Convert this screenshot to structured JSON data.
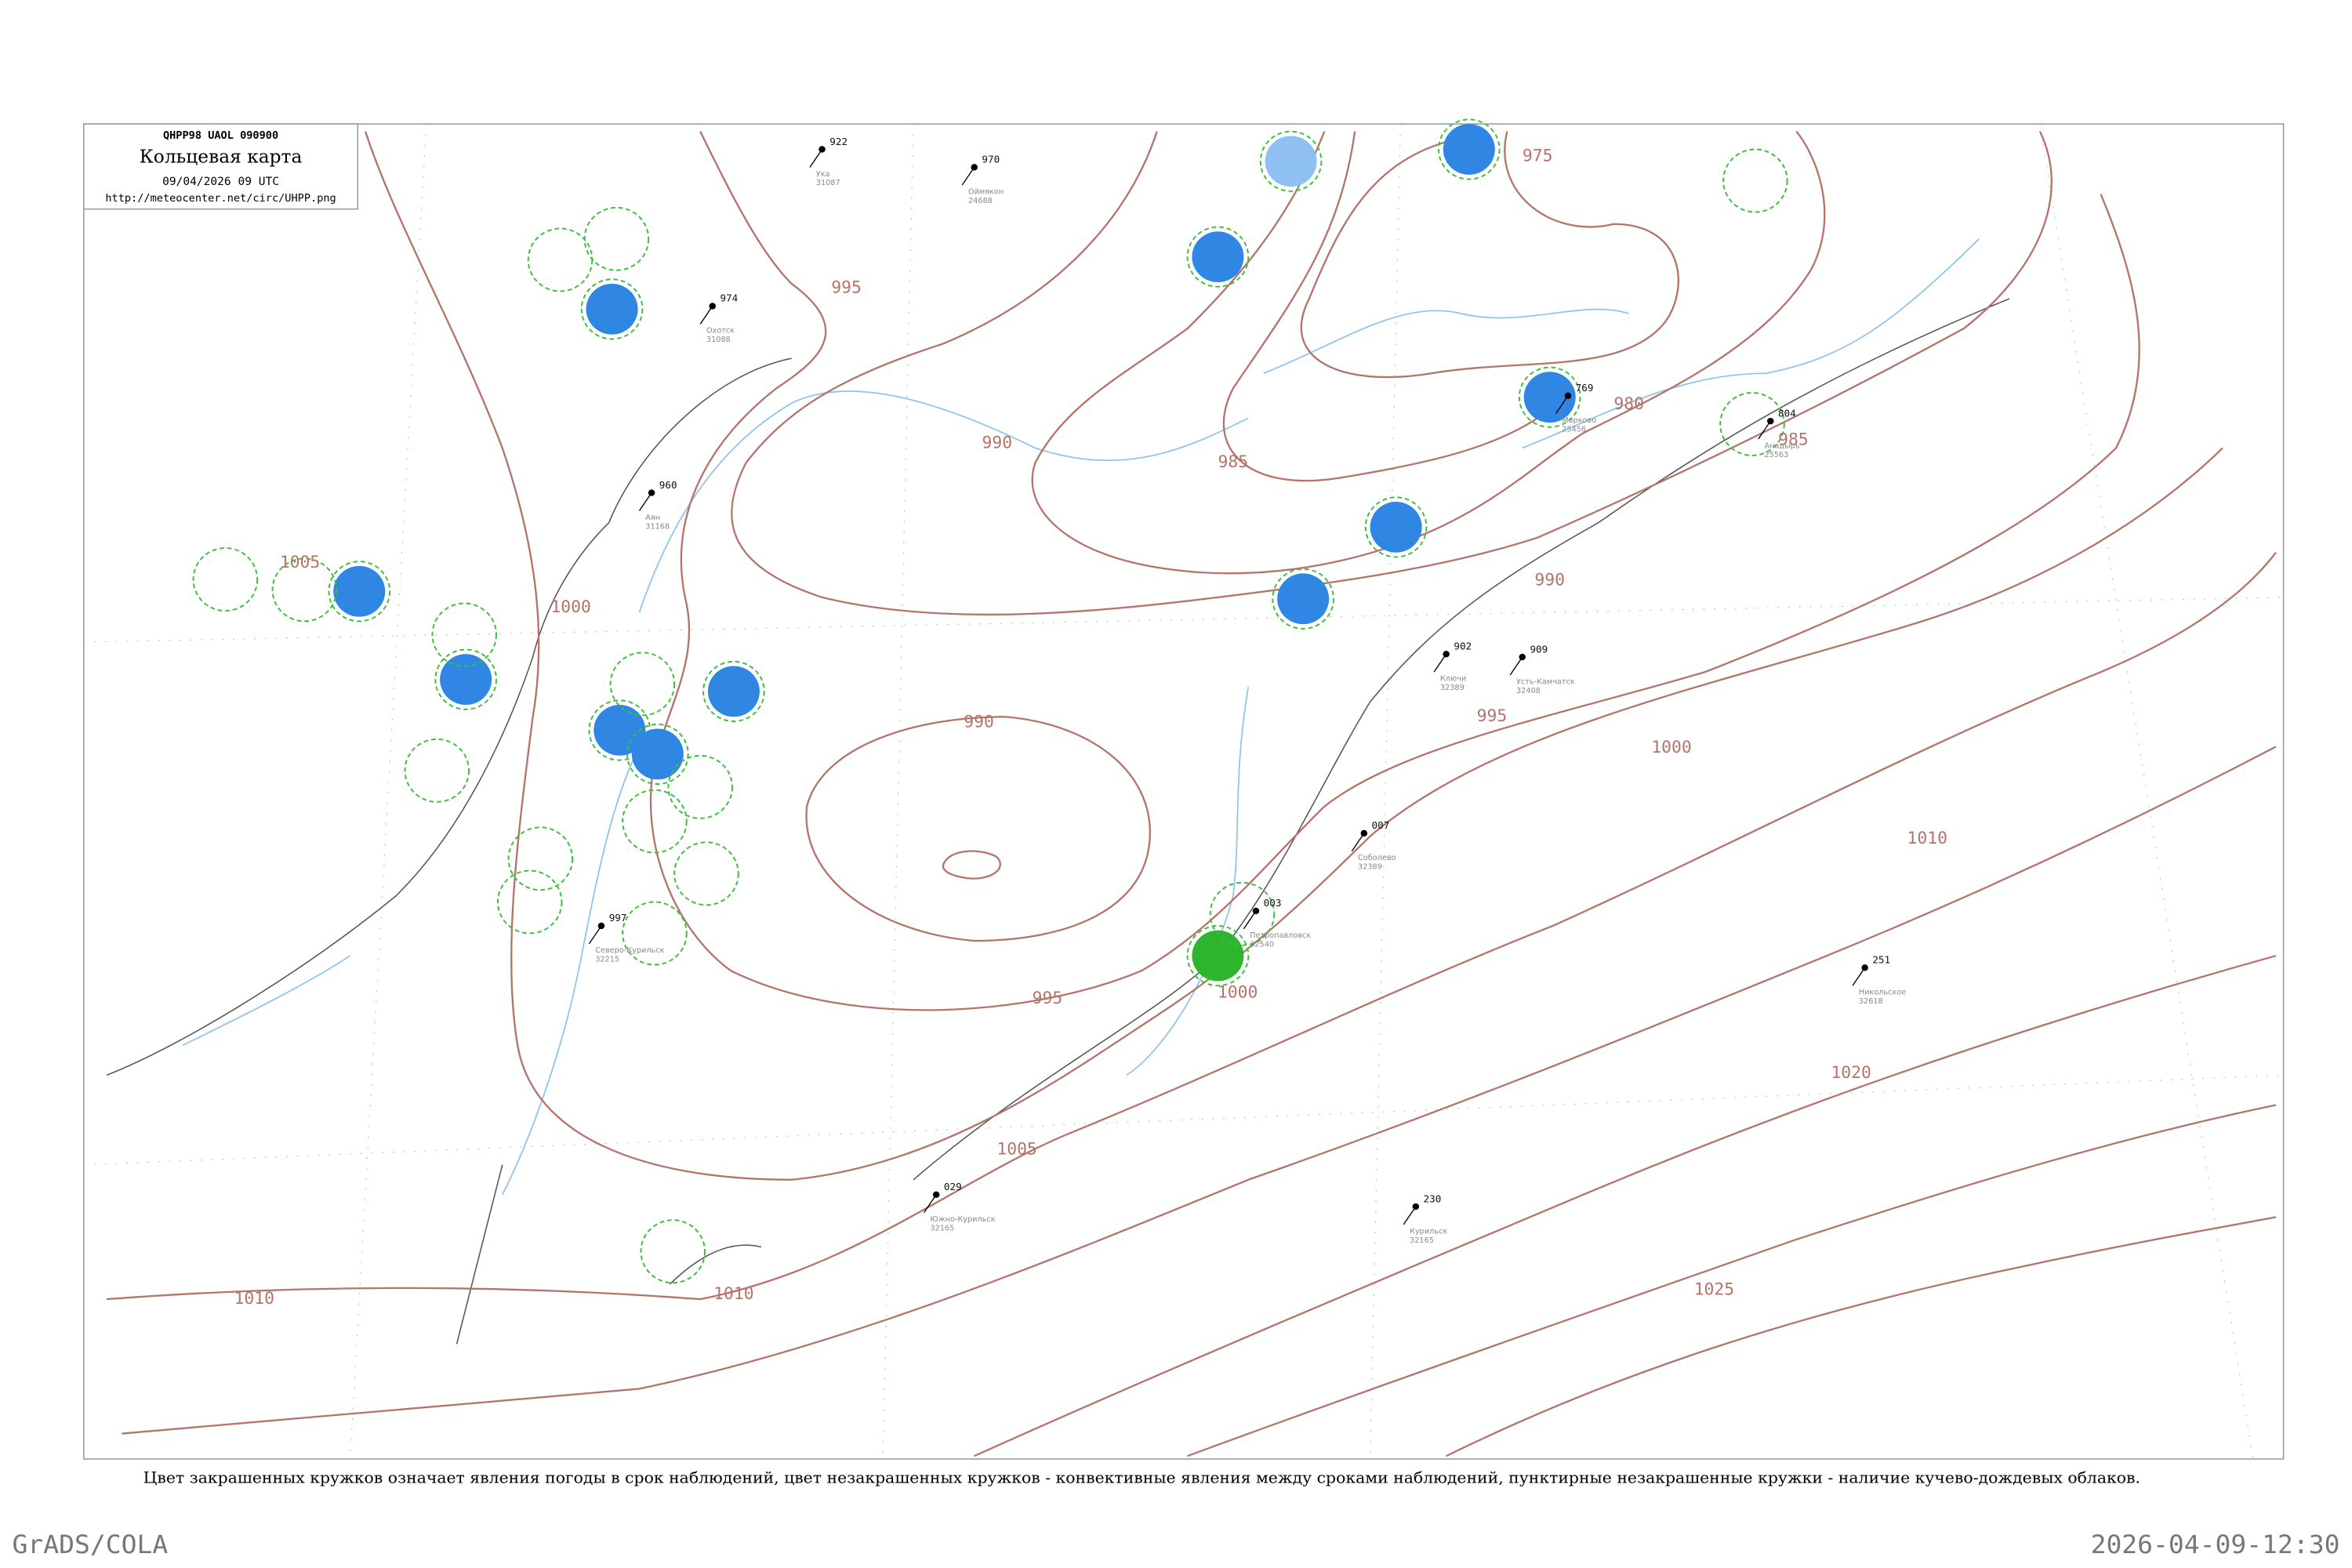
{
  "header": {
    "code": "QHPP98  UAOL  090900",
    "title": "Кольцевая карта",
    "datetime": "09/04/2026 09 UTC",
    "url": "http://meteocenter.net/circ/UHPP.png"
  },
  "isobar_labels": [
    "975",
    "980",
    "985",
    "985",
    "990",
    "990",
    "990",
    "995",
    "995",
    "995",
    "1000",
    "1000",
    "1000",
    "1005",
    "1005",
    "1010",
    "1010",
    "1010",
    "1020",
    "1025"
  ],
  "stations": [
    {
      "name": "Ука",
      "index": "31087",
      "pressure": "922"
    },
    {
      "name": "Аян",
      "index": "31168",
      "pressure": "960"
    },
    {
      "name": "Охотск",
      "index": "31088",
      "pressure": "974"
    },
    {
      "name": "Ключи",
      "index": "32389",
      "pressure": "902"
    },
    {
      "name": "Усть-Камчатск",
      "index": "32408",
      "pressure": "909"
    },
    {
      "name": "Петропавловск",
      "index": "32540",
      "pressure": "003"
    },
    {
      "name": "Соболево",
      "index": "32389",
      "pressure": "007"
    },
    {
      "name": "Никольское",
      "index": "32618",
      "pressure": "251"
    },
    {
      "name": "Курильск",
      "index": "32165",
      "pressure": "230"
    },
    {
      "name": "Южно-Курильск",
      "index": "32165",
      "pressure": "029"
    },
    {
      "name": "Северо-Курильск",
      "index": "32215",
      "pressure": "997"
    },
    {
      "name": "Оймякон",
      "index": "24688",
      "pressure": "970"
    },
    {
      "name": "Анадырь",
      "index": "25563",
      "pressure": "804"
    },
    {
      "name": "Марково",
      "index": "25456",
      "pressure": "769"
    }
  ],
  "caption": "Цвет закрашенных кружков означает явления погоды в срок наблюдений, цвет незакрашенных кружков - конвективные явления между сроками наблюдений, пунктирные незакрашенные кружки - наличие кучево-дождевых облаков.",
  "footer": {
    "left": "GrADS/COLA",
    "right": "2026-04-09-12:30"
  }
}
